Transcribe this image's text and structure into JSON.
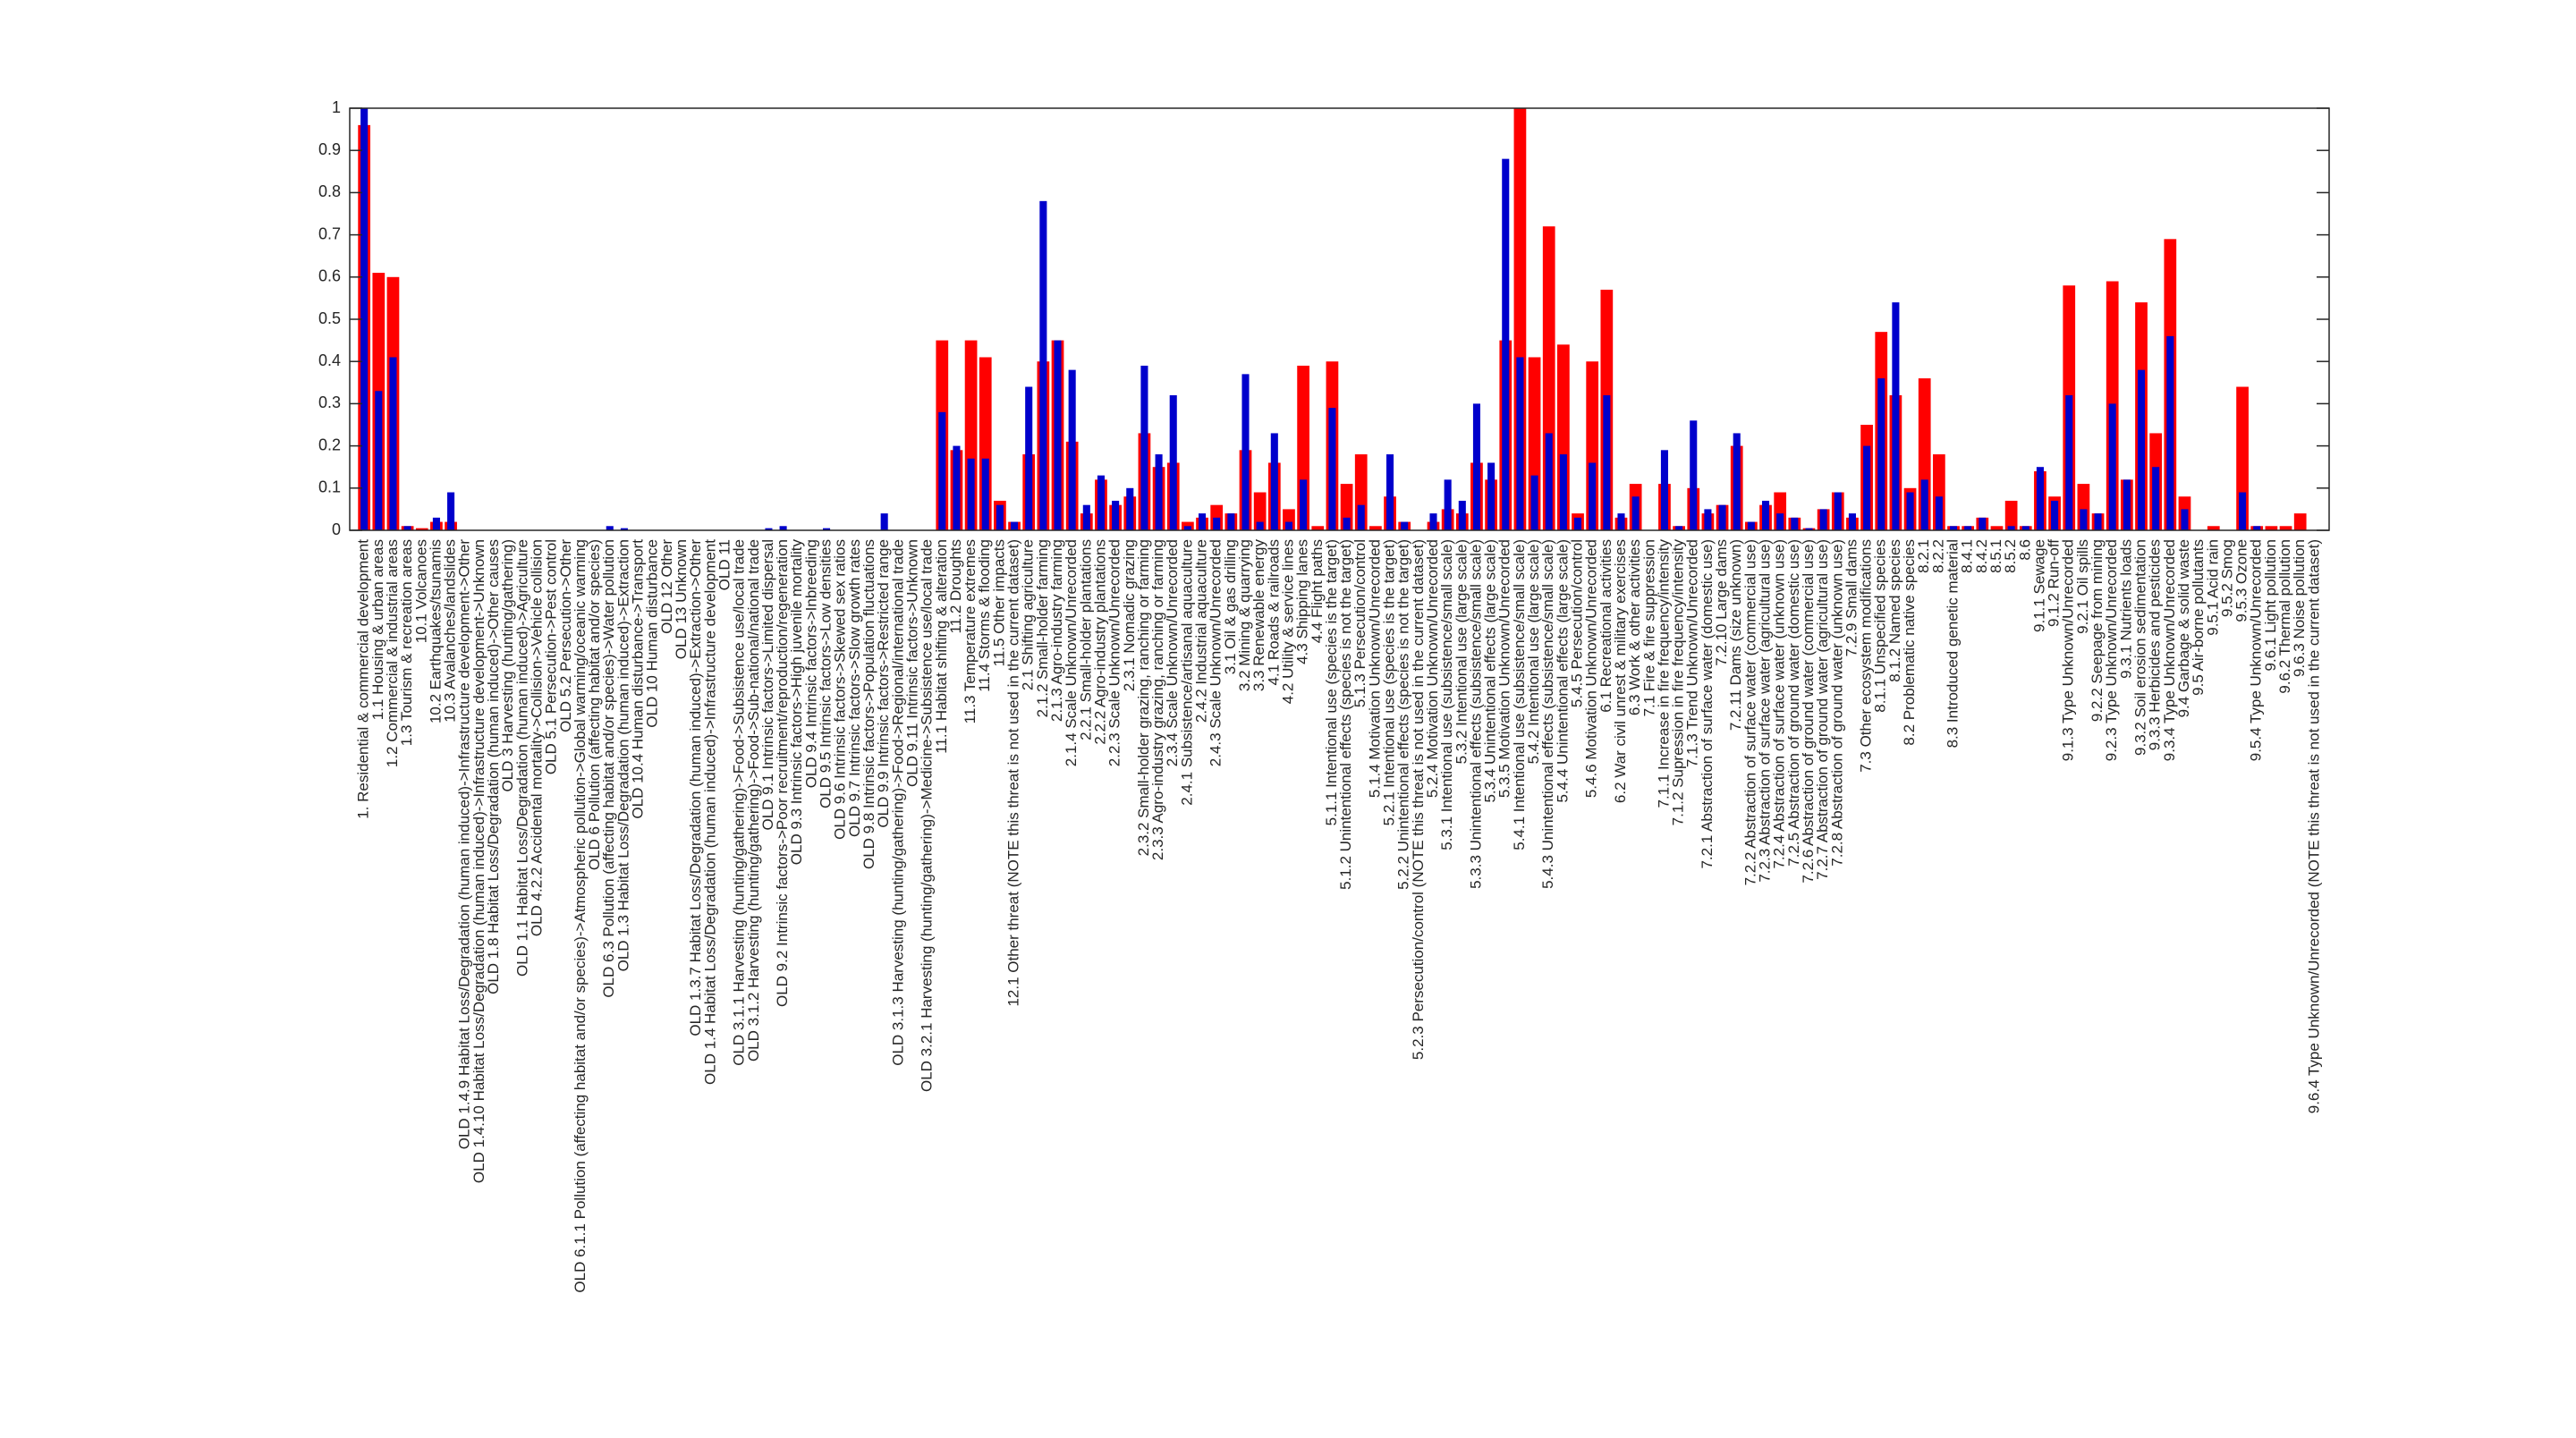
{
  "chart_data": {
    "type": "bar",
    "categories": [
      "1. Residential & commercial development",
      "1.1 Housing & urban areas",
      "1.2 Commercial & industrial areas",
      "1.3 Tourism & recreation areas",
      "10.1 Volcanoes",
      "10.2 Earthquakes/tsunamis",
      "10.3 Avalanches/landslides",
      "OLD 1.4.9 Habitat Loss/Degradation (human induced)->Infrastructure development->Other",
      "OLD 1.4.10 Habitat Loss/Degradation (human induced)->Infrastructure development->Unknown",
      "OLD 1.8 Habitat Loss/Degradation (human induced)->Other causes",
      "OLD 3 Harvesting (hunting/gathering)",
      "OLD 1.1 Habitat Loss/Degradation (human induced)->Agriculture",
      "OLD 4.2.2 Accidental mortality->Collision->Vehicle collision",
      "OLD 5.1 Persecution->Pest control",
      "OLD 5.2 Persecution->Other",
      "OLD 6.1.1 Pollution (affecting habitat and/or species)->Atmospheric pollution->Global warming/oceanic warming",
      "OLD 6 Pollution (affecting habitat and/or species)",
      "OLD 6.3 Pollution (affecting habitat and/or species)->Water pollution",
      "OLD 1.3 Habitat Loss/Degradation (human induced)->Extraction",
      "OLD 10.4 Human disturbance->Transport",
      "OLD 10 Human disturbance",
      "OLD 12 Other",
      "OLD 13 Unknown",
      "OLD 1.3.7 Habitat Loss/Degradation (human induced)->Extraction->Other",
      "OLD 1.4 Habitat Loss/Degradation (human induced)->Infrastructure development",
      "OLD 11",
      "OLD 3.1.1 Harvesting (hunting/gathering)->Food->Subsistence use/local trade",
      "OLD 3.1.2 Harvesting (hunting/gathering)->Food->Sub-national/national trade",
      "OLD 9.1 Intrinsic factors->Limited dispersal",
      "OLD 9.2 Intrinsic factors->Poor recruitment/reproduction/regeneration",
      "OLD 9.3 Intrinsic factors->High juvenile mortality",
      "OLD 9.4 Intrinsic factors->Inbreeding",
      "OLD 9.5 Intrinsic factors->Low densities",
      "OLD 9.6 Intrinsic factors->Skewed sex ratios",
      "OLD 9.7 Intrinsic factors->Slow growth rates",
      "OLD 9.8 Intrinsic factors->Population fluctuations",
      "OLD 9.9 Intrinsic factors->Restricted range",
      "OLD 3.1.3 Harvesting (hunting/gathering)->Food->Regional/international trade",
      "OLD 9.11 Intrinsic factors->Unknown",
      "OLD 3.2.1 Harvesting (hunting/gathering)->Medicine->Subsistence use/local trade",
      "11.1 Habitat shifting & alteration",
      "11.2 Droughts",
      "11.3 Temperature extremes",
      "11.4 Storms & flooding",
      "11.5 Other impacts",
      "12.1 Other threat (NOTE  this threat is not used in the current dataset)",
      "2.1 Shifting agriculture",
      "2.1.2 Small-holder farming",
      "2.1.3 Agro-industry farming",
      "2.1.4 Scale Unknown/Unrecorded",
      "2.2.1 Small-holder plantations",
      "2.2.2 Agro-industry plantations",
      "2.2.3 Scale Unknown/Unrecorded",
      "2.3.1 Nomadic grazing",
      "2.3.2 Small-holder grazing, ranching or farming",
      "2.3.3 Agro-industry grazing, ranching or farming",
      "2.3.4 Scale Unknown/Unrecorded",
      "2.4.1 Subsistence/artisanal aquaculture",
      "2.4.2 Industrial aquaculture",
      "2.4.3 Scale Unknown/Unrecorded",
      "3.1 Oil & gas drilling",
      "3.2 Mining & quarrying",
      "3.3 Renewable energy",
      "4.1 Roads & railroads",
      "4.2 Utility & service lines",
      "4.3 Shipping lanes",
      "4.4 Flight paths",
      "5.1.1 Intentional use (species is the target)",
      "5.1.2 Unintentional effects (species is not the target)",
      "5.1.3 Persecution/control",
      "5.1.4 Motivation Unknown/Unrecorded",
      "5.2.1 Intentional use (species is the target)",
      "5.2.2 Unintentional effects (species is not the target)",
      "5.2.3 Persecution/control (NOTE  this threat is not used in the current dataset)",
      "5.2.4 Motivation Unknown/Unrecorded",
      "5.3.1 Intentional use (subsistence/small scale)",
      "5.3.2 Intentional use (large scale)",
      "5.3.3 Unintentional effects (subsistence/small scale)",
      "5.3.4 Unintentional effects (large scale)",
      "5.3.5 Motivation Unknown/Unrecorded",
      "5.4.1 Intentional use (subsistence/small scale)",
      "5.4.2 Intentional use (large scale)",
      "5.4.3 Unintentional effects (subsistence/small scale)",
      "5.4.4 Unintentional effects (large scale)",
      "5.4.5 Persecution/control",
      "5.4.6 Motivation Unknown/Unrecorded",
      "6.1 Recreational activities",
      "6.2 War  civil unrest & military exercises",
      "6.3 Work & other activities",
      "7.1 Fire & fire suppression",
      "7.1.1 Increase in fire frequency/intensity",
      "7.1.2 Supression in fire frequency/intensity",
      "7.1.3 Trend Unknown/Unrecorded",
      "7.2.1 Abstraction of surface water (domestic use)",
      "7.2.10 Large dams",
      "7.2.11 Dams (size unknown)",
      "7.2.2 Abstraction of surface water (commercial use)",
      "7.2.3 Abstraction of surface water (agricultural use)",
      "7.2.4 Abstraction of surface water (unknown use)",
      "7.2.5 Abstraction of ground water (domestic use)",
      "7.2.6 Abstraction of ground water (commercial use)",
      "7.2.7 Abstraction of ground water (agricultural use)",
      "7.2.8 Abstraction of ground water (unknown use)",
      "7.2.9 Small dams",
      "7.3 Other ecosystem modifications",
      "8.1.1 Unspecified species",
      "8.1.2 Named species",
      "8.2 Problematic native species",
      "8.2.1",
      "8.2.2",
      "8.3 Introduced genetic material",
      "8.4.1",
      "8.4.2",
      "8.5.1",
      "8.5.2",
      "8.6",
      "9.1.1 Sewage",
      "9.1.2 Run-off",
      "9.1.3 Type Unknown/Unrecorded",
      "9.2.1 Oil spills",
      "9.2.2 Seepage from mining",
      "9.2.3 Type Unknown/Unrecorded",
      "9.3.1 Nutrients loads",
      "9.3.2 Soil erosion  sedimentation",
      "9.3.3 Herbicides and pesticides",
      "9.3.4 Type Unknown/Unrecorded",
      "9.4 Garbage & solid waste",
      "9.5 Air-borne pollutants",
      "9.5.1 Acid rain",
      "9.5.2 Smog",
      "9.5.3 Ozone",
      "9.5.4 Type Unknown/Unrecorded",
      "9.6.1 Light pollution",
      "9.6.2 Thermal pollution",
      "9.6.3 Noise pollution",
      "9.6.4 Type Unknown/Unrecorded (NOTE  this threat is not used in the current dataset)"
    ],
    "series": [
      {
        "color": "#ff0000",
        "values": [
          0.96,
          0.61,
          0.6,
          0.01,
          0.005,
          0.02,
          0.02,
          0,
          0,
          0,
          0,
          0,
          0,
          0,
          0,
          0,
          0,
          0,
          0,
          0,
          0,
          0,
          0,
          0,
          0,
          0,
          0,
          0,
          0,
          0,
          0,
          0,
          0,
          0,
          0,
          0,
          0,
          0,
          0,
          0,
          0.45,
          0.19,
          0.45,
          0.41,
          0.07,
          0.02,
          0.18,
          0.4,
          0.45,
          0.21,
          0.04,
          0.12,
          0.06,
          0.08,
          0.23,
          0.15,
          0.16,
          0.02,
          0.03,
          0.06,
          0.04,
          0.19,
          0.09,
          0.16,
          0.05,
          0.39,
          0.01,
          0.4,
          0.11,
          0.18,
          0.01,
          0.08,
          0.02,
          0,
          0.02,
          0.05,
          0.04,
          0.16,
          0.12,
          0.45,
          1.0,
          0.41,
          0.72,
          0.44,
          0.04,
          0.4,
          0.57,
          0.03,
          0.11,
          0,
          0.11,
          0.01,
          0.1,
          0.04,
          0.06,
          0.2,
          0.02,
          0.06,
          0.09,
          0.03,
          0.005,
          0.05,
          0.09,
          0.03,
          0.25,
          0.47,
          0.32,
          0.1,
          0.36,
          0.18,
          0.01,
          0.01,
          0.03,
          0.01,
          0.07,
          0.01,
          0.14,
          0.08,
          0.58,
          0.11,
          0.04,
          0.59,
          0.12,
          0.54,
          0.23,
          0.69,
          0.08,
          0,
          0.01,
          0,
          0.34,
          0.01,
          0.01,
          0.01,
          0.04,
          0
        ]
      },
      {
        "color": "#0000cc",
        "values": [
          1.0,
          0.33,
          0.41,
          0.01,
          0,
          0.03,
          0.09,
          0,
          0,
          0,
          0,
          0,
          0,
          0,
          0,
          0,
          0,
          0.01,
          0.005,
          0,
          0,
          0,
          0,
          0,
          0,
          0,
          0,
          0,
          0.005,
          0.01,
          0,
          0,
          0.005,
          0,
          0,
          0,
          0.04,
          0,
          0,
          0,
          0.28,
          0.2,
          0.17,
          0.17,
          0.06,
          0.02,
          0.34,
          0.78,
          0.45,
          0.38,
          0.06,
          0.13,
          0.07,
          0.1,
          0.39,
          0.18,
          0.32,
          0.01,
          0.04,
          0.03,
          0.04,
          0.37,
          0.02,
          0.23,
          0.02,
          0.12,
          0,
          0.29,
          0.03,
          0.06,
          0,
          0.18,
          0.02,
          0,
          0.04,
          0.12,
          0.07,
          0.3,
          0.16,
          0.88,
          0.41,
          0.13,
          0.23,
          0.18,
          0.03,
          0.16,
          0.32,
          0.04,
          0.08,
          0,
          0.19,
          0.01,
          0.26,
          0.05,
          0.06,
          0.23,
          0.02,
          0.07,
          0.04,
          0.03,
          0.005,
          0.05,
          0.09,
          0.04,
          0.2,
          0.36,
          0.54,
          0.09,
          0.12,
          0.08,
          0.01,
          0.01,
          0.03,
          0,
          0.01,
          0.01,
          0.15,
          0.07,
          0.32,
          0.05,
          0.04,
          0.3,
          0.12,
          0.38,
          0.15,
          0.46,
          0.05,
          0,
          0,
          0,
          0.09,
          0.01,
          0,
          0,
          0,
          0
        ]
      }
    ],
    "ylim": [
      0,
      1
    ],
    "yticks": [
      0,
      0.1,
      0.2,
      0.3,
      0.4,
      0.5,
      0.6,
      0.7,
      0.8,
      0.9,
      1
    ],
    "grid": false
  }
}
